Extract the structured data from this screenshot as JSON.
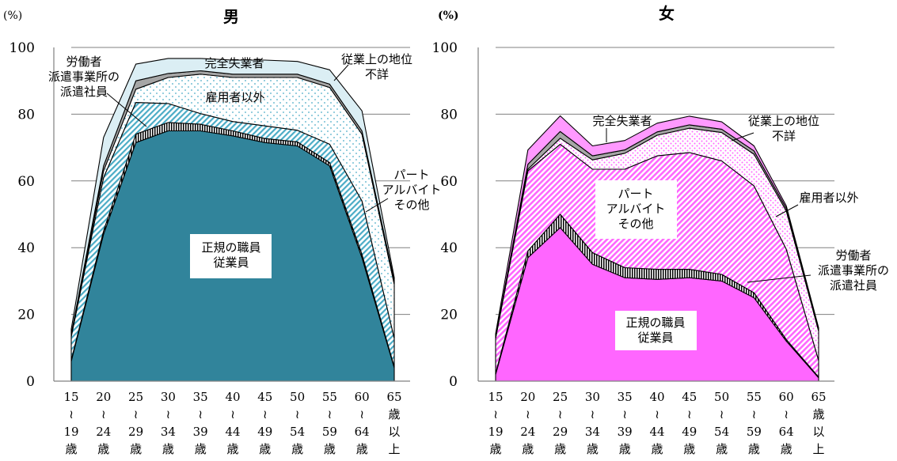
{
  "chart_data": [
    {
      "type": "area",
      "stacked": true,
      "title": "男",
      "unit": "(%)",
      "ylim": [
        0,
        100
      ],
      "y_ticks": [
        "0",
        "20",
        "40",
        "60",
        "80",
        "100"
      ],
      "grid": true,
      "categories": [
        [
          "15",
          "≀",
          "19",
          "歳"
        ],
        [
          "20",
          "≀",
          "24",
          "歳"
        ],
        [
          "25",
          "≀",
          "29",
          "歳"
        ],
        [
          "30",
          "≀",
          "34",
          "歳"
        ],
        [
          "35",
          "≀",
          "39",
          "歳"
        ],
        [
          "40",
          "≀",
          "44",
          "歳"
        ],
        [
          "45",
          "≀",
          "49",
          "歳"
        ],
        [
          "50",
          "≀",
          "54",
          "歳"
        ],
        [
          "55",
          "≀",
          "59",
          "歳"
        ],
        [
          "60",
          "≀",
          "64",
          "歳"
        ],
        [
          "65",
          "歳",
          "以",
          "上"
        ]
      ],
      "series": [
        {
          "name": "正規の職員\n従業員",
          "color": "#31849b",
          "pattern": "solid",
          "values": [
            6,
            44,
            71.5,
            75,
            75,
            73.5,
            71.5,
            70.5,
            64.5,
            37,
            4
          ]
        },
        {
          "name": "労働者\n派遣事業所の\n派遣社員",
          "color": "#ffffff",
          "pattern": "vertical",
          "values": [
            0.3,
            1,
            2.5,
            2.5,
            2,
            1.5,
            1.2,
            1.2,
            1,
            1,
            0.3
          ]
        },
        {
          "name": "パート\nアルバイト\nその他",
          "color": "#4bacc6",
          "pattern": "diagonal",
          "values": [
            7,
            16,
            9.5,
            5.7,
            3.2,
            2.8,
            3.8,
            3.5,
            5.5,
            16,
            8.5
          ]
        },
        {
          "name": "雇用者以外",
          "color": "#4bacc6",
          "pattern": "dots",
          "values": [
            0.5,
            2,
            4,
            7.8,
            11.8,
            13.2,
            14.5,
            15.8,
            17,
            20,
            16.2
          ]
        },
        {
          "name": "従業上の地位\n不詳",
          "color": "#a6a6a6",
          "pattern": "solid",
          "values": [
            0.3,
            1.5,
            2.5,
            1.2,
            1,
            1,
            1,
            1,
            1,
            1,
            1
          ]
        },
        {
          "name": "完全失業者",
          "color": "#dbeef4",
          "pattern": "solid",
          "values": [
            1.5,
            8.5,
            5,
            4.5,
            3.7,
            4.2,
            4.2,
            3.8,
            4.3,
            6,
            1
          ]
        }
      ]
    },
    {
      "type": "area",
      "stacked": true,
      "title": "女",
      "unit": "(%)",
      "ylim": [
        0,
        100
      ],
      "y_ticks": [
        "0",
        "20",
        "40",
        "60",
        "80",
        "100"
      ],
      "grid": true,
      "categories": [
        [
          "15",
          "≀",
          "19",
          "歳"
        ],
        [
          "20",
          "≀",
          "24",
          "歳"
        ],
        [
          "25",
          "≀",
          "29",
          "歳"
        ],
        [
          "30",
          "≀",
          "34",
          "歳"
        ],
        [
          "35",
          "≀",
          "39",
          "歳"
        ],
        [
          "40",
          "≀",
          "44",
          "歳"
        ],
        [
          "45",
          "≀",
          "49",
          "歳"
        ],
        [
          "50",
          "≀",
          "54",
          "歳"
        ],
        [
          "55",
          "≀",
          "59",
          "歳"
        ],
        [
          "60",
          "≀",
          "64",
          "歳"
        ],
        [
          "65",
          "歳",
          "以",
          "上"
        ]
      ],
      "series": [
        {
          "name": "正規の職員\n従業員",
          "color": "#ff66ff",
          "pattern": "solid",
          "values": [
            2,
            37,
            46,
            35,
            31,
            30.5,
            31,
            30,
            25,
            12,
            1
          ]
        },
        {
          "name": "労働者\n派遣事業所の\n派遣社員",
          "color": "#ffffff",
          "pattern": "vertical",
          "values": [
            0.3,
            2,
            4,
            3.5,
            3,
            3,
            2.5,
            2,
            1.5,
            0.5,
            0.2
          ]
        },
        {
          "name": "パート\nアルバイト\nその他",
          "color": "#ff66ff",
          "pattern": "diagonal",
          "values": [
            10.5,
            24,
            21,
            25,
            29.5,
            34,
            35,
            34,
            32,
            27,
            5
          ]
        },
        {
          "name": "雇用者以外",
          "color": "#ff66ff",
          "pattern": "dots",
          "values": [
            0.2,
            0.5,
            1.8,
            2.8,
            4.8,
            6.2,
            7.3,
            8.5,
            9.5,
            11.5,
            8.8
          ]
        },
        {
          "name": "従業上の地位\n不詳",
          "color": "#a6a6a6",
          "pattern": "solid",
          "values": [
            0.2,
            1.5,
            2,
            1.2,
            1,
            1,
            1,
            1,
            1,
            0.8,
            0.5
          ]
        },
        {
          "name": "完全失業者",
          "color": "#ff99ff",
          "pattern": "solid",
          "values": [
            1,
            4.3,
            4.7,
            3,
            2.8,
            2.6,
            2.6,
            2.2,
            1.5,
            0.7,
            0.5
          ]
        }
      ]
    }
  ]
}
